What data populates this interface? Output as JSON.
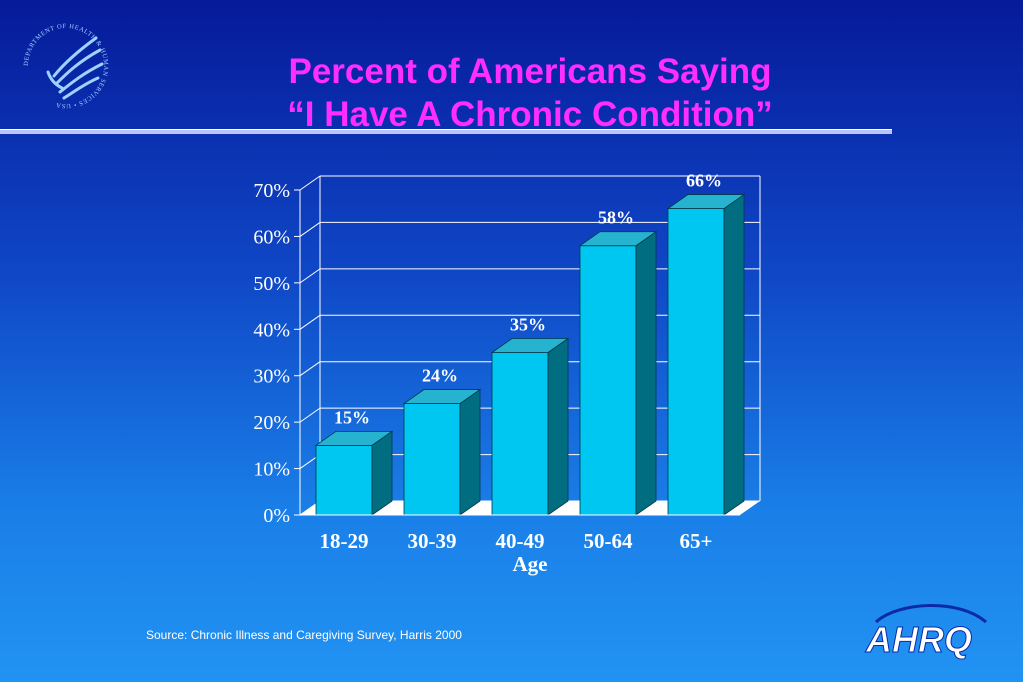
{
  "slide": {
    "title_line1": "Percent of Americans Saying",
    "title_line2": "“I Have A Chronic Condition”",
    "source": "Source: Chronic Illness and Caregiving Survey, Harris 2000",
    "logo_text": "AHRQ",
    "seal_text": "DEPARTMENT OF HEALTH & HUMAN SERVICES • USA"
  },
  "colors": {
    "title": "#ff2dff",
    "bar_front": "#00c6f2",
    "bar_top": "#25b3d0",
    "bar_side": "#006d80",
    "axis_text": "#ffffff"
  },
  "chart_data": {
    "type": "bar",
    "categories": [
      "18-29",
      "30-39",
      "40-49",
      "50-64",
      "65+"
    ],
    "values": [
      15,
      24,
      35,
      58,
      66
    ],
    "data_labels": [
      "15%",
      "24%",
      "35%",
      "58%",
      "66%"
    ],
    "xlabel": "Age",
    "ylabel": "",
    "ylim": [
      0,
      70
    ],
    "yticks": [
      0,
      10,
      20,
      30,
      40,
      50,
      60,
      70
    ],
    "ytick_labels": [
      "0%",
      "10%",
      "20%",
      "30%",
      "40%",
      "50%",
      "60%",
      "70%"
    ],
    "grid": true,
    "style": "3d-bar"
  }
}
